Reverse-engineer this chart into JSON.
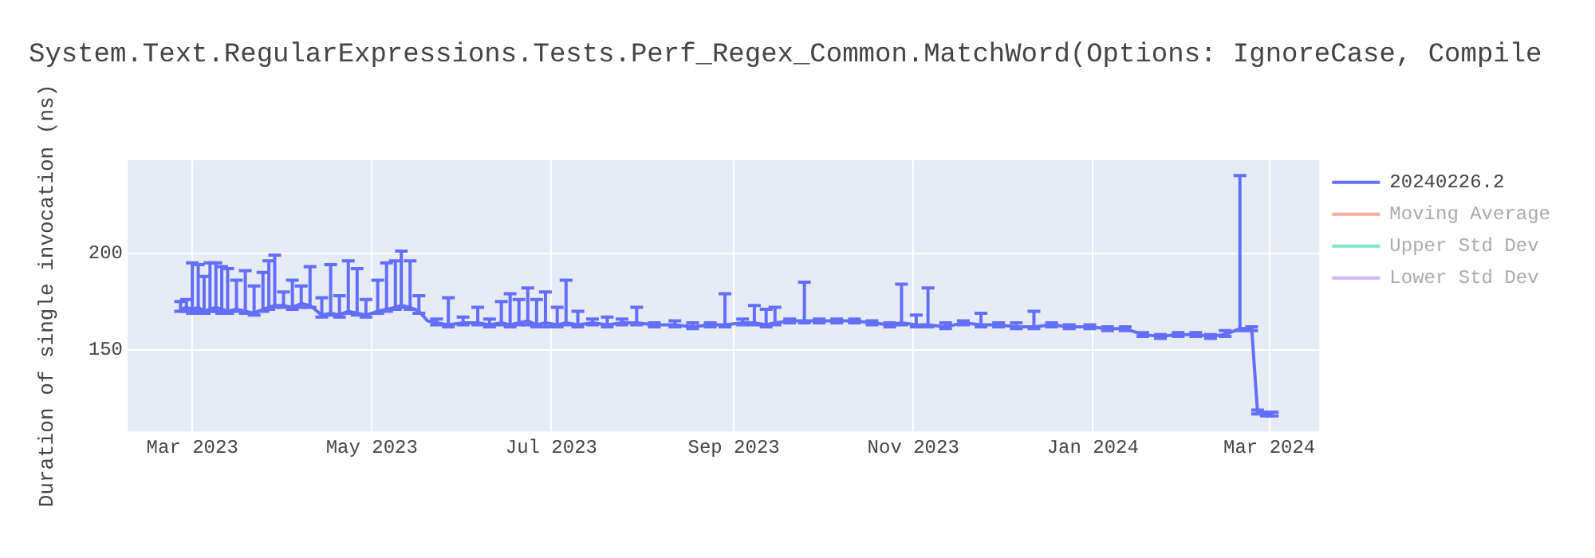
{
  "chart_data": {
    "type": "line",
    "title": "System.Text.RegularExpressions.Tests.Perf_Regex_Common.MatchWord(Options: IgnoreCase, Compile",
    "ylabel": "Duration of single invocation (ns)",
    "xlim": [
      "2023-02-07",
      "2024-03-18"
    ],
    "xticks": [
      {
        "value": "2023-03-01",
        "label": "Mar 2023"
      },
      {
        "value": "2023-05-01",
        "label": "May 2023"
      },
      {
        "value": "2023-07-01",
        "label": "Jul 2023"
      },
      {
        "value": "2023-09-01",
        "label": "Sep 2023"
      },
      {
        "value": "2023-11-01",
        "label": "Nov 2023"
      },
      {
        "value": "2024-01-01",
        "label": "Jan 2024"
      },
      {
        "value": "2024-03-01",
        "label": "Mar 2024"
      }
    ],
    "ylim": [
      108,
      248
    ],
    "yticks": [
      150,
      200
    ],
    "grid": true,
    "legend": "top right",
    "marker": "none",
    "line_style": "solid",
    "series": [
      {
        "name": "20240226.2",
        "color": "#636efa",
        "x": [
          "2023-02-25",
          "2023-02-27",
          "2023-03-01",
          "2023-03-03",
          "2023-03-05",
          "2023-03-07",
          "2023-03-09",
          "2023-03-11",
          "2023-03-13",
          "2023-03-16",
          "2023-03-19",
          "2023-03-22",
          "2023-03-25",
          "2023-03-27",
          "2023-03-29",
          "2023-04-01",
          "2023-04-04",
          "2023-04-07",
          "2023-04-10",
          "2023-04-14",
          "2023-04-17",
          "2023-04-20",
          "2023-04-23",
          "2023-04-26",
          "2023-04-29",
          "2023-05-03",
          "2023-05-06",
          "2023-05-09",
          "2023-05-11",
          "2023-05-14",
          "2023-05-17",
          "2023-05-20",
          "2023-05-23",
          "2023-05-27",
          "2023-06-01",
          "2023-06-06",
          "2023-06-10",
          "2023-06-14",
          "2023-06-17",
          "2023-06-20",
          "2023-06-23",
          "2023-06-26",
          "2023-06-29",
          "2023-07-03",
          "2023-07-06",
          "2023-07-10",
          "2023-07-15",
          "2023-07-20",
          "2023-07-25",
          "2023-07-30",
          "2023-08-05",
          "2023-08-12",
          "2023-08-18",
          "2023-08-24",
          "2023-08-29",
          "2023-09-04",
          "2023-09-08",
          "2023-09-12",
          "2023-09-15",
          "2023-09-20",
          "2023-09-25",
          "2023-09-30",
          "2023-10-06",
          "2023-10-12",
          "2023-10-18",
          "2023-10-24",
          "2023-10-28",
          "2023-11-02",
          "2023-11-06",
          "2023-11-12",
          "2023-11-18",
          "2023-11-24",
          "2023-11-30",
          "2023-12-06",
          "2023-12-12",
          "2023-12-18",
          "2023-12-24",
          "2023-12-31",
          "2024-01-06",
          "2024-01-12",
          "2024-01-18",
          "2024-01-24",
          "2024-01-30",
          "2024-02-05",
          "2024-02-10",
          "2024-02-15",
          "2024-02-20",
          "2024-02-24",
          "2024-02-26",
          "2024-02-29",
          "2024-03-02"
        ],
        "values": [
          171,
          172,
          171,
          172,
          170,
          171,
          172,
          171,
          170,
          171,
          170,
          169,
          171,
          172,
          173,
          173,
          172,
          174,
          173,
          168,
          169,
          168,
          170,
          169,
          168,
          170,
          171,
          172,
          173,
          172,
          170,
          165,
          164,
          163,
          164,
          164,
          163,
          164,
          163,
          164,
          165,
          163,
          164,
          163,
          164,
          163,
          164,
          163,
          164,
          164,
          163,
          163,
          162,
          163,
          163,
          164,
          164,
          163,
          164,
          165,
          165,
          165,
          165,
          165,
          164,
          163,
          164,
          163,
          163,
          162,
          164,
          163,
          163,
          162,
          162,
          163,
          162,
          162,
          161,
          161,
          158,
          157,
          158,
          158,
          157,
          158,
          161,
          161,
          118,
          117,
          117
        ],
        "errors": [
          [
            170,
            175
          ],
          [
            170,
            176
          ],
          [
            169,
            195
          ],
          [
            170,
            194
          ],
          [
            169,
            188
          ],
          [
            170,
            195
          ],
          [
            170,
            195
          ],
          [
            169,
            193
          ],
          [
            169,
            192
          ],
          [
            170,
            186
          ],
          [
            169,
            191
          ],
          [
            168,
            183
          ],
          [
            170,
            190
          ],
          [
            171,
            196
          ],
          [
            172,
            199
          ],
          [
            172,
            180
          ],
          [
            171,
            186
          ],
          [
            172,
            183
          ],
          [
            172,
            193
          ],
          [
            167,
            177
          ],
          [
            168,
            194
          ],
          [
            167,
            178
          ],
          [
            169,
            196
          ],
          [
            168,
            192
          ],
          [
            167,
            176
          ],
          [
            169,
            186
          ],
          [
            170,
            195
          ],
          [
            171,
            196
          ],
          [
            172,
            201
          ],
          [
            171,
            196
          ],
          [
            169,
            178
          ],
          null,
          [
            163,
            166
          ],
          [
            162,
            177
          ],
          [
            163,
            167
          ],
          [
            163,
            172
          ],
          [
            162,
            166
          ],
          [
            163,
            175
          ],
          [
            162,
            179
          ],
          [
            163,
            176
          ],
          [
            163,
            182
          ],
          [
            162,
            176
          ],
          [
            162,
            180
          ],
          [
            162,
            172
          ],
          [
            163,
            186
          ],
          [
            162,
            170
          ],
          [
            163,
            166
          ],
          [
            162,
            167
          ],
          [
            163,
            166
          ],
          [
            163,
            172
          ],
          [
            162,
            164
          ],
          [
            162,
            165
          ],
          [
            161,
            164
          ],
          [
            162,
            164
          ],
          [
            162,
            179
          ],
          [
            163,
            166
          ],
          [
            163,
            173
          ],
          [
            162,
            171
          ],
          [
            163,
            172
          ],
          [
            164,
            166
          ],
          [
            164,
            185
          ],
          [
            164,
            166
          ],
          [
            164,
            166
          ],
          [
            164,
            166
          ],
          [
            163,
            165
          ],
          [
            162,
            164
          ],
          [
            163,
            184
          ],
          [
            162,
            168
          ],
          [
            162,
            182
          ],
          [
            161,
            164
          ],
          [
            163,
            165
          ],
          [
            162,
            169
          ],
          [
            162,
            164
          ],
          [
            161,
            164
          ],
          [
            161,
            170
          ],
          [
            162,
            164
          ],
          [
            161,
            163
          ],
          [
            161,
            163
          ],
          [
            160,
            162
          ],
          [
            160,
            162
          ],
          [
            157,
            159
          ],
          [
            156,
            158
          ],
          [
            157,
            159
          ],
          [
            157,
            159
          ],
          [
            156,
            158
          ],
          [
            157,
            160
          ],
          [
            160,
            240
          ],
          [
            160,
            162
          ],
          [
            117,
            119
          ],
          [
            116,
            118
          ],
          [
            116,
            118
          ]
        ]
      },
      {
        "name": "Moving Average",
        "color": "#ef553b"
      },
      {
        "name": "Upper Std Dev",
        "color": "#00cc96"
      },
      {
        "name": "Lower Std Dev",
        "color": "#ab63fa"
      }
    ]
  }
}
